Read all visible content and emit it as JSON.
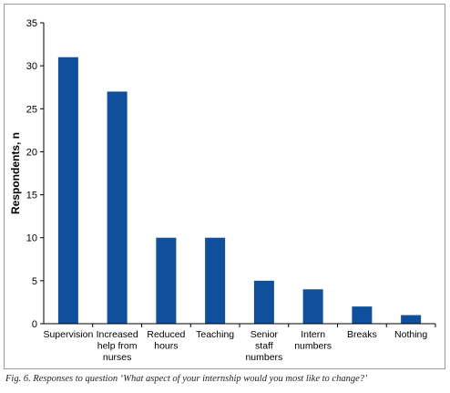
{
  "chart_data": {
    "type": "bar",
    "categories": [
      "Supervision",
      "Increased help from nurses",
      "Reduced hours",
      "Teaching",
      "Senior staff numbers",
      "Intern numbers",
      "Breaks",
      "Nothing"
    ],
    "category_lines": [
      [
        "Supervision"
      ],
      [
        "Increased",
        "help from",
        "nurses"
      ],
      [
        "Reduced",
        "hours"
      ],
      [
        "Teaching"
      ],
      [
        "Senior",
        "staff",
        "numbers"
      ],
      [
        "Intern",
        "numbers"
      ],
      [
        "Breaks"
      ],
      [
        "Nothing"
      ]
    ],
    "values": [
      31,
      27,
      10,
      10,
      5,
      4,
      2,
      1
    ],
    "ylabel": "Respondents, n",
    "ylim": [
      0,
      35
    ],
    "yticks": [
      0,
      5,
      10,
      15,
      20,
      25,
      30,
      35
    ],
    "grid": false,
    "bar_color": "#0f4f9b"
  },
  "caption": "Fig. 6. Responses to question ‘What aspect of your internship would you most like to change?’"
}
